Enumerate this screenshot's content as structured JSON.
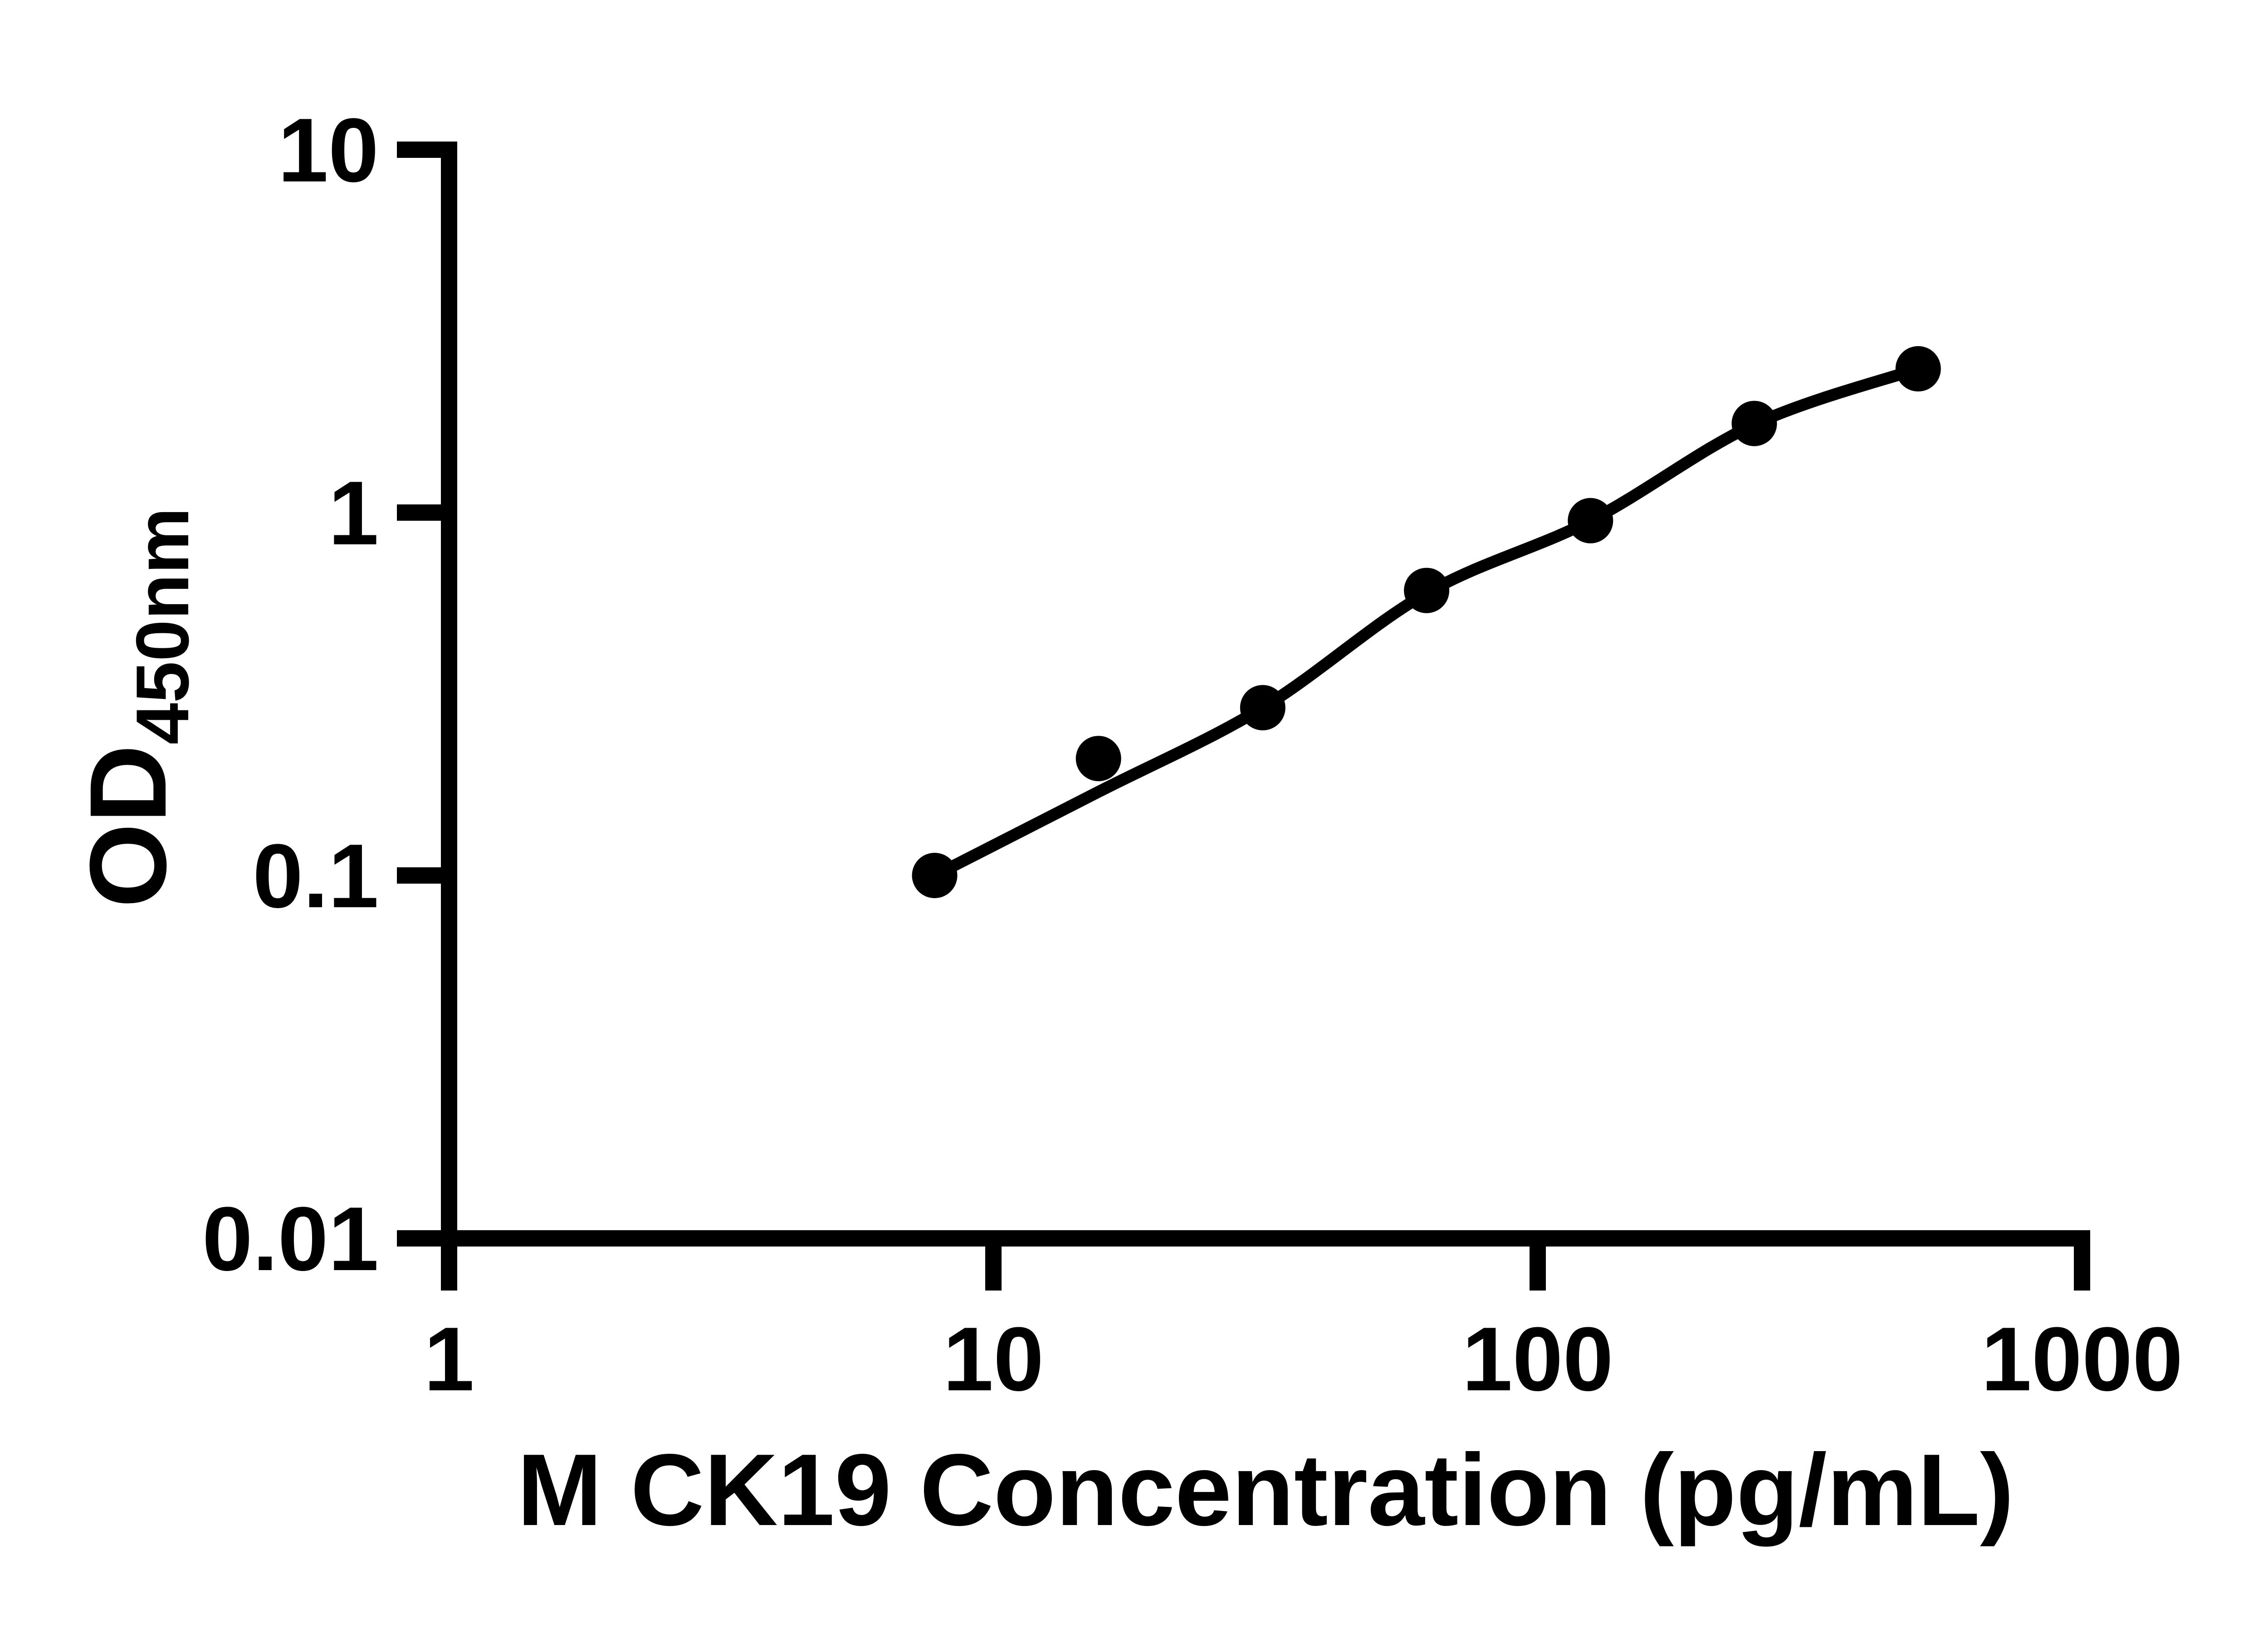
{
  "figure": {
    "background": "#ffffff",
    "ink_color": "#000000"
  },
  "chart_data": {
    "type": "scatter",
    "title": "",
    "xlabel": "M CK19 Concentration (pg/mL)",
    "ylabel_main": "OD",
    "ylabel_sub": "450nm",
    "x_scale": "log10",
    "y_scale": "log10",
    "xlim": [
      1,
      1000
    ],
    "ylim": [
      0.01,
      10
    ],
    "x_ticks": [
      1,
      10,
      100,
      1000
    ],
    "y_ticks": [
      10,
      1,
      0.1,
      0.01
    ],
    "x_tick_labels": [
      "1",
      "10",
      "100",
      "1000"
    ],
    "y_tick_labels": [
      "10",
      "1",
      "0.1",
      "0.01"
    ],
    "grid": false,
    "legend_position": "none",
    "marker_color": "#000000",
    "line_color": "#000000",
    "series": [
      {
        "name": "standard-points",
        "kind": "scatter",
        "x": [
          7.8,
          15.6,
          31.25,
          62.5,
          125,
          250,
          500
        ],
        "y": [
          0.1,
          0.21,
          0.29,
          0.61,
          0.95,
          1.76,
          2.49
        ]
      },
      {
        "name": "fitted-curve",
        "kind": "smooth-line",
        "x": [
          7.8,
          15.6,
          31.25,
          62.5,
          125,
          250,
          500
        ],
        "y": [
          0.1,
          0.17,
          0.29,
          0.6,
          0.95,
          1.75,
          2.49
        ]
      }
    ]
  }
}
